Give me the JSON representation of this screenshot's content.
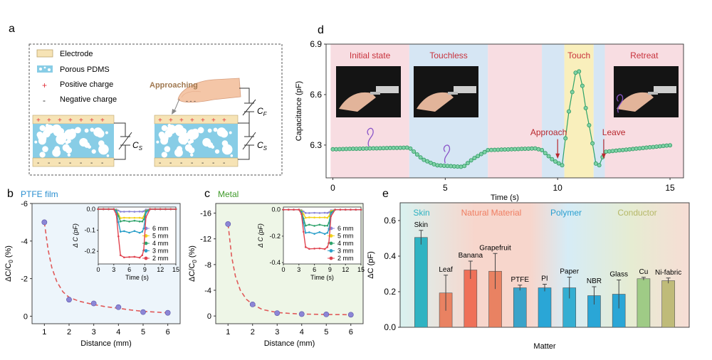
{
  "panel_letters": {
    "a": "a",
    "b": "b",
    "c": "c",
    "d": "d",
    "e": "e"
  },
  "panel_a": {
    "legend": {
      "electrode": "Electrode",
      "porous": "Porous PDMS",
      "positive": "Positive charge",
      "negative": "Negative charge",
      "plus_symbol": "+",
      "minus_symbol": "-"
    },
    "approaching": "Approaching",
    "cap_s": "C",
    "cap_s_sub": "S",
    "cap_f": "C",
    "cap_f_sub": "F"
  },
  "chart_data": [
    {
      "id": "b",
      "type": "scatter",
      "title": "PTFE film",
      "xlabel": "Distance (mm)",
      "ylabel": "ΔC/C",
      "ylabel_sub": "0",
      "ylabel_unit": " (%)",
      "x": [
        1,
        2,
        3,
        4,
        5,
        6
      ],
      "y": [
        -5.0,
        -0.88,
        -0.68,
        -0.48,
        -0.22,
        -0.18
      ],
      "fit_x": [
        1,
        1.15,
        1.3,
        1.5,
        1.75,
        2,
        2.4,
        3,
        3.5,
        4,
        4.5,
        5,
        5.5,
        6
      ],
      "fit_y": [
        -5.0,
        -3.55,
        -2.6,
        -1.85,
        -1.3,
        -1.0,
        -0.8,
        -0.62,
        -0.5,
        -0.42,
        -0.33,
        -0.26,
        -0.22,
        -0.18
      ],
      "xticks": [
        "1",
        "2",
        "3",
        "4",
        "5",
        "6"
      ],
      "yticks": [
        "-6",
        "-4",
        "-2",
        "0"
      ],
      "ytick_values": [
        -6,
        -4,
        -2,
        0
      ],
      "xlim": [
        0.5,
        6.5
      ],
      "ylim": [
        0.4,
        -6.0
      ],
      "inset": {
        "xlabel": "Time (s)",
        "ylabel": "Δ C (pF)",
        "xticks": [
          "0",
          "3",
          "6",
          "9",
          "12",
          "15"
        ],
        "yticks": [
          "0.0",
          "-0.1",
          "-0.2"
        ],
        "ytick_values": [
          0,
          -0.1,
          -0.2
        ],
        "xlim": [
          0,
          15
        ],
        "ylim": [
          -0.26,
          0.01
        ],
        "series": [
          {
            "name": "6 mm",
            "color": "#8a86d8",
            "depth": -0.012
          },
          {
            "name": "5 mm",
            "color": "#f2d21a",
            "depth": -0.042
          },
          {
            "name": "4 mm",
            "color": "#2fa36b",
            "depth": -0.058
          },
          {
            "name": "3 mm",
            "color": "#2a9fc9",
            "depth": -0.11
          },
          {
            "name": "2 mm",
            "color": "#e04450",
            "depth": -0.232
          }
        ]
      }
    },
    {
      "id": "c",
      "type": "scatter",
      "title": "Metal",
      "xlabel": "Distance (mm)",
      "ylabel": "ΔC/C",
      "ylabel_sub": "0",
      "ylabel_unit": " (%)",
      "x": [
        1,
        2,
        3,
        4,
        5,
        6
      ],
      "y": [
        -14.3,
        -1.8,
        -0.45,
        -0.3,
        -0.25,
        -0.2
      ],
      "fit_x": [
        1,
        1.15,
        1.3,
        1.5,
        1.75,
        2,
        2.4,
        3,
        3.5,
        4,
        4.5,
        5,
        5.5,
        6
      ],
      "fit_y": [
        -14.3,
        -9.2,
        -6.2,
        -4.0,
        -2.6,
        -1.8,
        -1.0,
        -0.55,
        -0.4,
        -0.3,
        -0.27,
        -0.24,
        -0.22,
        -0.2
      ],
      "xticks": [
        "1",
        "2",
        "3",
        "4",
        "5",
        "6"
      ],
      "yticks": [
        "-16",
        "-12",
        "-8",
        "-4",
        "0"
      ],
      "ytick_values": [
        -16,
        -12,
        -8,
        -4,
        0
      ],
      "xlim": [
        0.5,
        6.5
      ],
      "ylim": [
        1.2,
        -17.5
      ],
      "inset": {
        "xlabel": "Time (s)",
        "ylabel": "Δ C (pF)",
        "xticks": [
          "0",
          "3",
          "6",
          "9",
          "12",
          "15"
        ],
        "yticks": [
          "0.0",
          "-0.2",
          "-0.4"
        ],
        "ytick_values": [
          0,
          -0.2,
          -0.4
        ],
        "xlim": [
          0,
          15
        ],
        "ylim": [
          -0.41,
          0.02
        ],
        "series": [
          {
            "name": "6 mm",
            "color": "#8a86d8",
            "depth": -0.025
          },
          {
            "name": "5 mm",
            "color": "#f2d21a",
            "depth": -0.06
          },
          {
            "name": "4 mm",
            "color": "#2fa36b",
            "depth": -0.12
          },
          {
            "name": "3 mm",
            "color": "#2a9fc9",
            "depth": -0.18
          },
          {
            "name": "2 mm",
            "color": "#e04450",
            "depth": -0.3
          }
        ]
      }
    },
    {
      "id": "d",
      "type": "line",
      "xlabel": "Time (s)",
      "ylabel": "Capacitance (pF)",
      "xticks": [
        "0",
        "5",
        "10",
        "15"
      ],
      "xtick_values": [
        0,
        5,
        10,
        15
      ],
      "yticks": [
        "6.3",
        "6.6",
        "6.9"
      ],
      "ytick_values": [
        6.3,
        6.6,
        6.9
      ],
      "xlim": [
        -0.3,
        15.6
      ],
      "ylim": [
        6.105,
        6.9
      ],
      "regions": [
        {
          "label": "Initial state",
          "x0": -0.1,
          "x1": 3.4,
          "color": "#f8dde2"
        },
        {
          "label": "Touchless",
          "x0": 3.4,
          "x1": 6.9,
          "color": "#d6e6f4"
        },
        {
          "label": "",
          "x0": 6.9,
          "x1": 9.3,
          "color": "#f8dde2"
        },
        {
          "label": "",
          "x0": 9.3,
          "x1": 10.3,
          "color": "#d6e6f4"
        },
        {
          "label": "Touch",
          "x0": 10.3,
          "x1": 11.6,
          "color": "#f9efbc"
        },
        {
          "label": "",
          "x0": 11.6,
          "x1": 12.1,
          "color": "#d6e6f4"
        },
        {
          "label": "Retreat",
          "x0": 12.1,
          "x1": 15.6,
          "color": "#f8dde2"
        }
      ],
      "annotations": {
        "approach": "Approach",
        "leave": "Leave"
      },
      "key_x": [
        0,
        3.4,
        4.0,
        4.6,
        5.8,
        6.2,
        6.9,
        9.0,
        9.3,
        9.8,
        10.2,
        10.5,
        10.8,
        11.0,
        11.25,
        11.5,
        11.75,
        11.85,
        12.1,
        15.1
      ],
      "key_y": [
        6.275,
        6.285,
        6.215,
        6.18,
        6.17,
        6.215,
        6.27,
        6.28,
        6.27,
        6.21,
        6.18,
        6.5,
        6.73,
        6.74,
        6.52,
        6.35,
        6.15,
        6.18,
        6.26,
        6.3
      ]
    },
    {
      "id": "e",
      "type": "bar",
      "xlabel": "Matter",
      "ylabel": "ΔC (pF)",
      "yticks": [
        "0.0",
        "0.2",
        "0.4",
        "0.6"
      ],
      "ytick_values": [
        0,
        0.2,
        0.4,
        0.6
      ],
      "ylim": [
        0,
        0.7
      ],
      "groups": [
        {
          "label": "Skin",
          "color": "#2fb3c2"
        },
        {
          "label": "Natural Material",
          "color": "#ef7e62"
        },
        {
          "label": "Polymer",
          "color": "#2a9fd0"
        },
        {
          "label": "Conductor",
          "color": "#b5b867"
        }
      ],
      "categories": [
        "Skin",
        "Leaf",
        "Banana",
        "Grapefruit",
        "PTFE",
        "PI",
        "Paper",
        "NBR",
        "Glass",
        "Cu",
        "Ni-fabric"
      ],
      "values": [
        0.505,
        0.193,
        0.322,
        0.315,
        0.222,
        0.222,
        0.222,
        0.178,
        0.186,
        0.273,
        0.262
      ],
      "errors": [
        0.04,
        0.1,
        0.05,
        0.1,
        0.015,
        0.02,
        0.06,
        0.05,
        0.08,
        0.008,
        0.015
      ],
      "bar_colors": [
        "#2fb3c2",
        "#e98262",
        "#ef7058",
        "#e98262",
        "#3aa3c9",
        "#2aa6d6",
        "#33aed2",
        "#2aa6d6",
        "#2aa6d6",
        "#9fcb86",
        "#bfbb79"
      ]
    }
  ]
}
